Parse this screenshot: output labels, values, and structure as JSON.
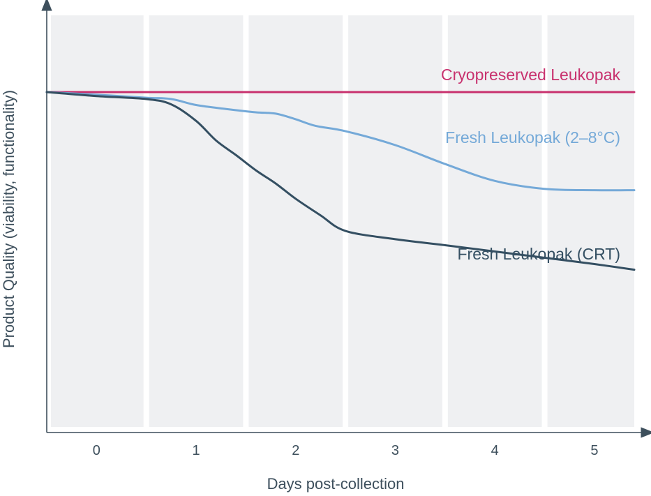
{
  "chart_data": {
    "type": "line",
    "xlabel": "Days post-collection",
    "ylabel": "Product Quality (viability, functionality)",
    "xlim": [
      -0.5,
      5.4
    ],
    "ylim": [
      0,
      100
    ],
    "x_ticks": [
      "0",
      "1",
      "2",
      "3",
      "4",
      "5"
    ],
    "y_ticks": [],
    "grid": "alternating day bands",
    "legend": "inline labels at right",
    "series": [
      {
        "name": "Cryopreserved Leukopak",
        "color": "#c8316e",
        "x": [
          -0.5,
          5.4
        ],
        "y": [
          100,
          100
        ]
      },
      {
        "name": "Fresh Leukopak (2–8°C)",
        "color": "#74a9d8",
        "x": [
          -0.5,
          0.0,
          0.5,
          0.75,
          1.0,
          1.3,
          1.6,
          1.8,
          2.0,
          2.2,
          2.5,
          3.0,
          3.5,
          4.0,
          4.5,
          5.0,
          5.4
        ],
        "y": [
          100,
          99.2,
          98.3,
          97.9,
          96.1,
          94.9,
          93.9,
          93.5,
          91.8,
          89.8,
          88.2,
          84.0,
          78.3,
          73.2,
          70.8,
          70.4,
          70.4
        ]
      },
      {
        "name": "Fresh Leukopak (CRT)",
        "color": "#344f62",
        "x": [
          -0.5,
          0.0,
          0.5,
          0.75,
          1.0,
          1.2,
          1.4,
          1.6,
          1.8,
          2.0,
          2.25,
          2.5,
          3.0,
          3.5,
          4.0,
          4.5,
          5.0,
          5.4
        ],
        "y": [
          100,
          98.8,
          97.9,
          96.3,
          91.3,
          85.4,
          81.0,
          76.4,
          72.4,
          67.8,
          62.8,
          58.1,
          55.6,
          53.8,
          51.9,
          50.0,
          48.1,
          46.4
        ]
      }
    ]
  }
}
